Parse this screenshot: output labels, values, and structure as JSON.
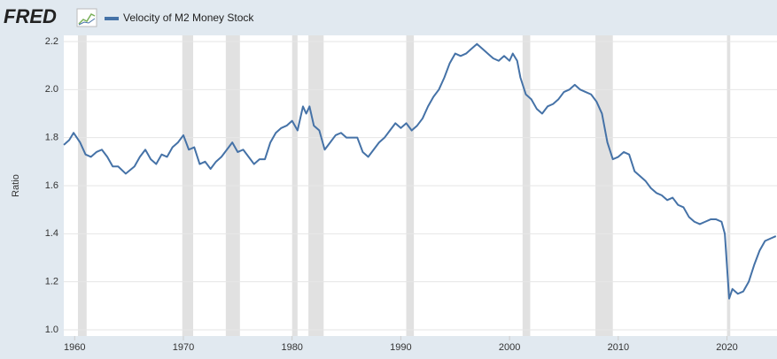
{
  "logo": "FRED",
  "chart_data": {
    "type": "line",
    "y_axis_label": "Ratio",
    "series": [
      {
        "name": "Velocity of M2 Money Stock",
        "color": "#4572a7",
        "x": [
          1959,
          1959.5,
          1959.9,
          1960.5,
          1961,
          1961.5,
          1962,
          1962.5,
          1963,
          1963.5,
          1964,
          1964.7,
          1965.5,
          1966,
          1966.5,
          1967,
          1967.5,
          1968,
          1968.5,
          1969,
          1969.5,
          1970,
          1970.5,
          1971,
          1971.5,
          1972,
          1972.5,
          1973,
          1973.5,
          1974,
          1974.5,
          1975,
          1975.5,
          1976,
          1976.5,
          1977,
          1977.5,
          1978,
          1978.5,
          1979,
          1979.5,
          1980,
          1980.5,
          1981,
          1981.3,
          1981.6,
          1982,
          1982.5,
          1983,
          1983.5,
          1984,
          1984.5,
          1985,
          1986,
          1986.5,
          1987,
          1987.5,
          1988,
          1988.5,
          1989,
          1989.5,
          1990,
          1990.5,
          1991,
          1991.5,
          1992,
          1992.5,
          1993,
          1993.5,
          1994,
          1994.5,
          1995,
          1995.5,
          1996,
          1996.5,
          1997,
          1997.5,
          1998,
          1998.5,
          1999,
          1999.5,
          2000,
          2000.3,
          2000.7,
          2001,
          2001.5,
          2002,
          2002.5,
          2003,
          2003.5,
          2004,
          2004.5,
          2005,
          2005.5,
          2006,
          2006.5,
          2007,
          2007.5,
          2008,
          2008.5,
          2009,
          2009.5,
          2010,
          2010.5,
          2011,
          2011.5,
          2012,
          2012.5,
          2013,
          2013.5,
          2014,
          2014.5,
          2015,
          2015.5,
          2016,
          2016.5,
          2017,
          2017.5,
          2018,
          2018.5,
          2019,
          2019.5,
          2019.8,
          2020.2,
          2020.5,
          2021,
          2021.5,
          2022,
          2022.5,
          2023,
          2023.5,
          2024,
          2024.5
        ],
        "values": [
          1.77,
          1.79,
          1.82,
          1.78,
          1.73,
          1.72,
          1.74,
          1.75,
          1.72,
          1.68,
          1.68,
          1.65,
          1.68,
          1.72,
          1.75,
          1.71,
          1.69,
          1.73,
          1.72,
          1.76,
          1.78,
          1.81,
          1.75,
          1.76,
          1.69,
          1.7,
          1.67,
          1.7,
          1.72,
          1.75,
          1.78,
          1.74,
          1.75,
          1.72,
          1.69,
          1.71,
          1.71,
          1.78,
          1.82,
          1.84,
          1.85,
          1.87,
          1.83,
          1.93,
          1.9,
          1.93,
          1.85,
          1.83,
          1.75,
          1.78,
          1.81,
          1.82,
          1.8,
          1.8,
          1.74,
          1.72,
          1.75,
          1.78,
          1.8,
          1.83,
          1.86,
          1.84,
          1.86,
          1.83,
          1.85,
          1.88,
          1.93,
          1.97,
          2.0,
          2.05,
          2.11,
          2.15,
          2.14,
          2.15,
          2.17,
          2.19,
          2.17,
          2.15,
          2.13,
          2.12,
          2.14,
          2.12,
          2.15,
          2.12,
          2.05,
          1.98,
          1.96,
          1.92,
          1.9,
          1.93,
          1.94,
          1.96,
          1.99,
          2.0,
          2.02,
          2.0,
          1.99,
          1.98,
          1.95,
          1.9,
          1.78,
          1.71,
          1.72,
          1.74,
          1.73,
          1.66,
          1.64,
          1.62,
          1.59,
          1.57,
          1.56,
          1.54,
          1.55,
          1.52,
          1.51,
          1.47,
          1.45,
          1.44,
          1.45,
          1.46,
          1.46,
          1.45,
          1.4,
          1.13,
          1.17,
          1.15,
          1.16,
          1.2,
          1.27,
          1.33,
          1.37,
          1.38,
          1.39
        ]
      }
    ],
    "shaded_ranges": [
      [
        1960.3,
        1961.1
      ],
      [
        1969.9,
        1970.9
      ],
      [
        1973.9,
        1975.2
      ],
      [
        1980.0,
        1980.5
      ],
      [
        1981.5,
        1982.9
      ],
      [
        1990.5,
        1991.2
      ],
      [
        2001.2,
        2001.9
      ],
      [
        2007.9,
        2009.5
      ],
      [
        2020.0,
        2020.3
      ]
    ],
    "shade_color": "#e1e1e1",
    "xlim": [
      1959,
      2024.6
    ],
    "xticks": [
      1960,
      1970,
      1980,
      1990,
      2000,
      2010,
      2020
    ],
    "ylim": [
      1.0,
      2.2
    ],
    "yticks": [
      {
        "value": 1.0,
        "label": "1.0"
      },
      1.2,
      1.4,
      1.6,
      1.8,
      {
        "value": 2.0,
        "label": "2.0"
      },
      2.2
    ],
    "grid": true
  }
}
